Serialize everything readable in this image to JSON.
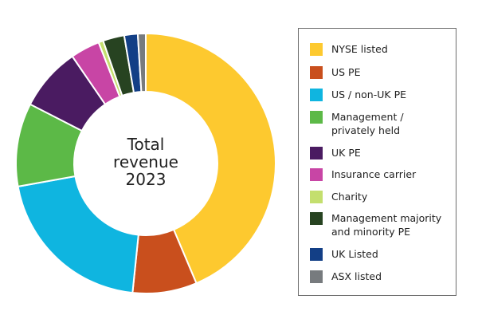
{
  "chart_data": {
    "type": "pie",
    "center_label": [
      "Total",
      "revenue",
      "2023"
    ],
    "series": [
      {
        "name": "NYSE listed",
        "value": 44.2,
        "color": "#fdc92f"
      },
      {
        "name": "US PE",
        "value": 8.1,
        "color": "#c94f1d"
      },
      {
        "name": "US / non-UK PE",
        "value": 20.8,
        "color": "#0fb5e0"
      },
      {
        "name": "Management / privately held",
        "value": 10.5,
        "color": "#5cb947"
      },
      {
        "name": "UK PE",
        "value": 8.0,
        "color": "#4a1b61"
      },
      {
        "name": "Insurance carrier",
        "value": 3.7,
        "color": "#c845a5"
      },
      {
        "name": "Charity",
        "value": 0.6,
        "color": "#c4df6e"
      },
      {
        "name": "Management majority and minority PE",
        "value": 2.7,
        "color": "#274321"
      },
      {
        "name": "UK Listed",
        "value": 1.7,
        "color": "#133f86"
      },
      {
        "name": "ASX listed",
        "value": 1.0,
        "color": "#777b7e"
      }
    ],
    "legend": {
      "position": "right",
      "items": [
        {
          "lines": [
            "NYSE listed"
          ],
          "color": "#fdc92f"
        },
        {
          "lines": [
            "US PE"
          ],
          "color": "#c94f1d"
        },
        {
          "lines": [
            "US / non-UK PE"
          ],
          "color": "#0fb5e0"
        },
        {
          "lines": [
            "Management /",
            "privately held"
          ],
          "color": "#5cb947"
        },
        {
          "lines": [
            "UK PE"
          ],
          "color": "#4a1b61"
        },
        {
          "lines": [
            "Insurance carrier"
          ],
          "color": "#c845a5"
        },
        {
          "lines": [
            "Charity"
          ],
          "color": "#c4df6e"
        },
        {
          "lines": [
            "Management majority",
            "and minority PE"
          ],
          "color": "#274321"
        },
        {
          "lines": [
            "UK Listed"
          ],
          "color": "#133f86"
        },
        {
          "lines": [
            "ASX listed"
          ],
          "color": "#777b7e"
        }
      ]
    }
  }
}
